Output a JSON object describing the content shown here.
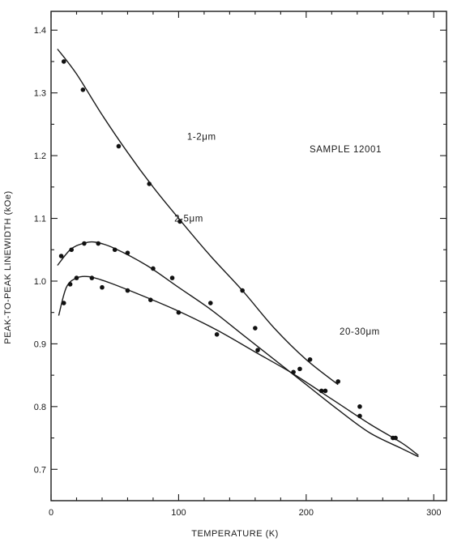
{
  "chart_data": {
    "type": "scatter",
    "title": "",
    "xlabel": "TEMPERATURE (K)",
    "ylabel": "PEAK-TO-PEAK LINEWIDTH (kOe)",
    "xlim": [
      0,
      310
    ],
    "ylim": [
      0.65,
      1.43
    ],
    "x_ticks": [
      0,
      100,
      200,
      300
    ],
    "x_tick_labels": [
      "0",
      "100",
      "200",
      "300"
    ],
    "y_ticks": [
      0.7,
      0.8,
      0.9,
      1.0,
      1.1,
      1.2,
      1.3,
      1.4
    ],
    "y_tick_labels": [
      "0.7",
      "0.8",
      "0.9",
      "1.0",
      "1.1",
      "1.2",
      "1.3",
      "1.4"
    ],
    "grid": false,
    "legend": "none",
    "annotation": "SAMPLE 12001",
    "series": [
      {
        "name": "1-2μm",
        "label": "1-2μm",
        "points": [
          [
            10,
            1.35
          ],
          [
            25,
            1.305
          ],
          [
            53,
            1.215
          ],
          [
            77,
            1.155
          ],
          [
            101,
            1.095
          ],
          [
            150,
            0.985
          ],
          [
            203,
            0.875
          ],
          [
            225,
            0.84
          ]
        ],
        "curve": [
          [
            5,
            1.37
          ],
          [
            20,
            1.33
          ],
          [
            40,
            1.265
          ],
          [
            60,
            1.205
          ],
          [
            80,
            1.15
          ],
          [
            100,
            1.1
          ],
          [
            125,
            1.04
          ],
          [
            150,
            0.985
          ],
          [
            175,
            0.925
          ],
          [
            200,
            0.875
          ],
          [
            225,
            0.835
          ]
        ]
      },
      {
        "name": "2-5μm",
        "label": "2-5μm",
        "points": [
          [
            8,
            1.04
          ],
          [
            16,
            1.05
          ],
          [
            26,
            1.06
          ],
          [
            37,
            1.06
          ],
          [
            50,
            1.05
          ],
          [
            60,
            1.045
          ],
          [
            80,
            1.02
          ],
          [
            95,
            1.005
          ],
          [
            125,
            0.965
          ],
          [
            160,
            0.925
          ],
          [
            195,
            0.86
          ],
          [
            215,
            0.825
          ],
          [
            242,
            0.8
          ],
          [
            268,
            0.75
          ]
        ],
        "curve": [
          [
            5,
            1.025
          ],
          [
            15,
            1.05
          ],
          [
            25,
            1.06
          ],
          [
            35,
            1.062
          ],
          [
            50,
            1.052
          ],
          [
            75,
            1.025
          ],
          [
            100,
            0.99
          ],
          [
            125,
            0.955
          ],
          [
            150,
            0.915
          ],
          [
            175,
            0.875
          ],
          [
            200,
            0.835
          ],
          [
            225,
            0.795
          ],
          [
            250,
            0.758
          ],
          [
            275,
            0.733
          ],
          [
            288,
            0.72
          ]
        ]
      },
      {
        "name": "20-30μm",
        "label": "20-30μm",
        "points": [
          [
            10,
            0.965
          ],
          [
            15,
            0.995
          ],
          [
            20,
            1.005
          ],
          [
            32,
            1.005
          ],
          [
            40,
            0.99
          ],
          [
            60,
            0.985
          ],
          [
            78,
            0.97
          ],
          [
            100,
            0.95
          ],
          [
            130,
            0.915
          ],
          [
            162,
            0.89
          ],
          [
            190,
            0.855
          ],
          [
            212,
            0.825
          ],
          [
            242,
            0.785
          ],
          [
            270,
            0.75
          ]
        ],
        "curve": [
          [
            6,
            0.945
          ],
          [
            12,
            0.99
          ],
          [
            20,
            1.005
          ],
          [
            30,
            1.007
          ],
          [
            45,
            0.998
          ],
          [
            70,
            0.978
          ],
          [
            100,
            0.952
          ],
          [
            130,
            0.922
          ],
          [
            160,
            0.887
          ],
          [
            190,
            0.852
          ],
          [
            220,
            0.812
          ],
          [
            250,
            0.772
          ],
          [
            275,
            0.742
          ],
          [
            288,
            0.722
          ]
        ]
      }
    ]
  }
}
